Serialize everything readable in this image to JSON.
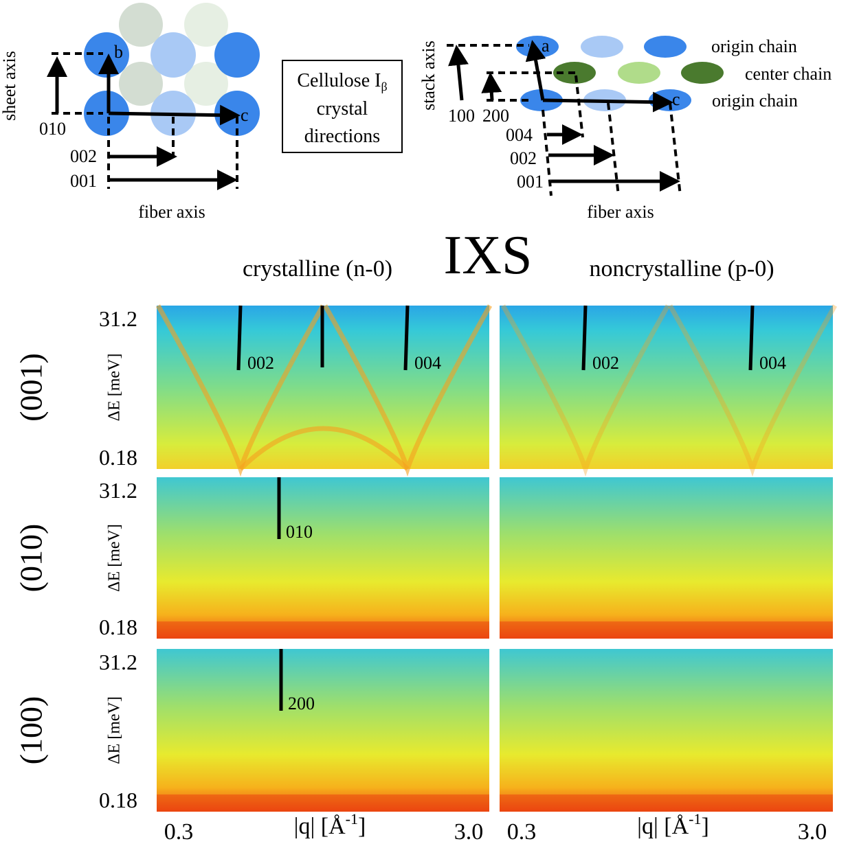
{
  "left_diagram": {
    "sheet_axis": "sheet axis",
    "fiber_axis": "fiber axis",
    "atoms": [
      "b",
      "c"
    ],
    "directions": [
      "010",
      "002",
      "001"
    ]
  },
  "caption_box": {
    "line1": "Cellulose I",
    "subscript": "β",
    "line2": "crystal",
    "line3": "directions"
  },
  "right_diagram": {
    "stack_axis": "stack axis",
    "fiber_axis": "fiber axis",
    "atoms": [
      "a",
      "c"
    ],
    "chains": [
      "origin chain",
      "center chain",
      "origin chain"
    ],
    "directions": [
      "100",
      "200",
      "004",
      "002",
      "001"
    ]
  },
  "title": "IXS",
  "columns": [
    {
      "header": "crystalline (n-0)",
      "x_min": "0.3",
      "x_label": "|q| [Å",
      "x_label_sup": "-1",
      "x_label_end": "]",
      "x_max": "3.0"
    },
    {
      "header": "noncrystalline (p-0)",
      "x_min": "0.3",
      "x_label": "|q| [Å",
      "x_label_sup": "-1",
      "x_label_end": "]",
      "x_max": "3.0"
    }
  ],
  "rows": [
    {
      "label": "(001)",
      "y_label": "ΔE [meV]",
      "y_top": "31.2",
      "y_bottom": "0.18",
      "annotations": [
        [
          "002",
          "004"
        ],
        [
          "002",
          "004"
        ]
      ]
    },
    {
      "label": "(010)",
      "y_label": "ΔE [meV]",
      "y_top": "31.2",
      "y_bottom": "0.18",
      "annotations": [
        [
          "010"
        ]
      ]
    },
    {
      "label": "(100)",
      "y_label": "ΔE [meV]",
      "y_top": "31.2",
      "y_bottom": "0.18",
      "annotations": [
        [
          "200"
        ]
      ]
    }
  ]
}
